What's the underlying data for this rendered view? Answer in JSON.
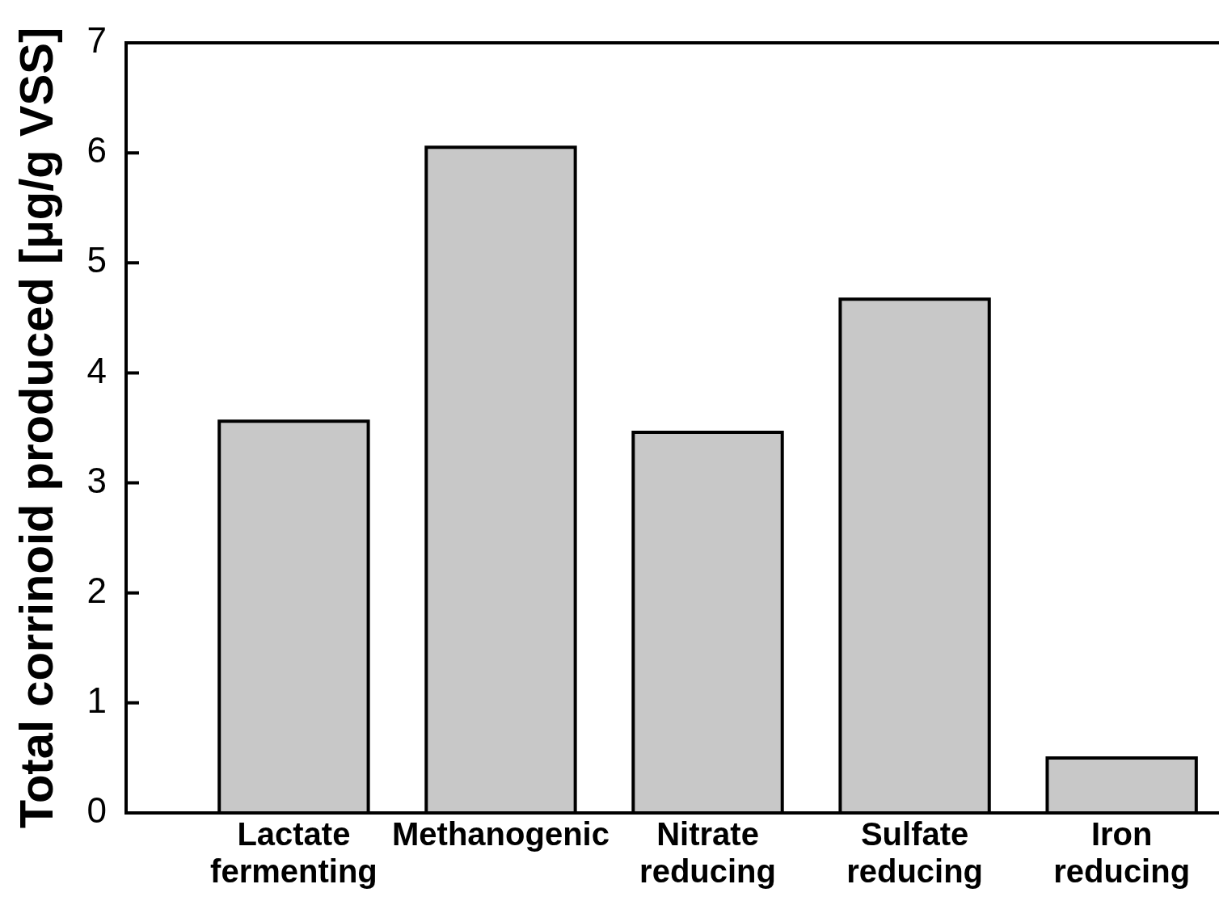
{
  "chart_data": {
    "type": "bar",
    "ylabel": "Total corrinoid produced [μg/g VSS]",
    "categories": [
      "Lactate fermenting",
      "Methanogenic",
      "Nitrate reducing",
      "Sulfate reducing",
      "Iron reducing"
    ],
    "values": [
      3.56,
      6.05,
      3.46,
      4.67,
      0.5
    ],
    "color": "#c8c8c8",
    "ylim": [
      0,
      7
    ],
    "yticks": [
      0,
      1,
      2,
      3,
      4,
      5,
      6,
      7
    ]
  }
}
